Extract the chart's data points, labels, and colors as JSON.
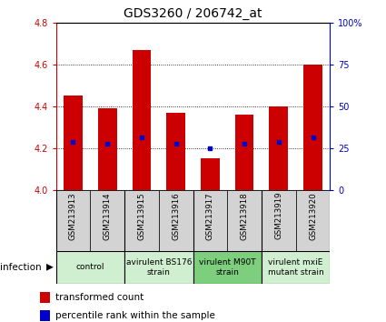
{
  "title": "GDS3260 / 206742_at",
  "samples": [
    "GSM213913",
    "GSM213914",
    "GSM213915",
    "GSM213916",
    "GSM213917",
    "GSM213918",
    "GSM213919",
    "GSM213920"
  ],
  "bar_values": [
    4.45,
    4.39,
    4.67,
    4.37,
    4.15,
    4.36,
    4.4,
    4.6
  ],
  "percentile_values": [
    4.23,
    4.22,
    4.25,
    4.22,
    4.2,
    4.22,
    4.23,
    4.25
  ],
  "bar_color": "#cc0000",
  "percentile_color": "#0000cc",
  "bar_base": 4.0,
  "ylim": [
    4.0,
    4.8
  ],
  "left_yticks": [
    4.0,
    4.2,
    4.4,
    4.6,
    4.8
  ],
  "right_yticks": [
    0,
    25,
    50,
    75,
    100
  ],
  "right_ylim": [
    0,
    100
  ],
  "dotted_lines": [
    4.2,
    4.4,
    4.6
  ],
  "groups": [
    {
      "label": "control",
      "start": 0,
      "end": 2,
      "color": "#d0efd0"
    },
    {
      "label": "avirulent BS176\nstrain",
      "start": 2,
      "end": 4,
      "color": "#d0efd0"
    },
    {
      "label": "virulent M90T\nstrain",
      "start": 4,
      "end": 6,
      "color": "#7dce7d"
    },
    {
      "label": "virulent mxiE\nmutant strain",
      "start": 6,
      "end": 8,
      "color": "#d0efd0"
    }
  ],
  "infection_label": "infection",
  "legend_red": "transformed count",
  "legend_blue": "percentile rank within the sample",
  "bar_width": 0.55,
  "title_fontsize": 10,
  "tick_fontsize": 7,
  "label_fontsize": 7
}
